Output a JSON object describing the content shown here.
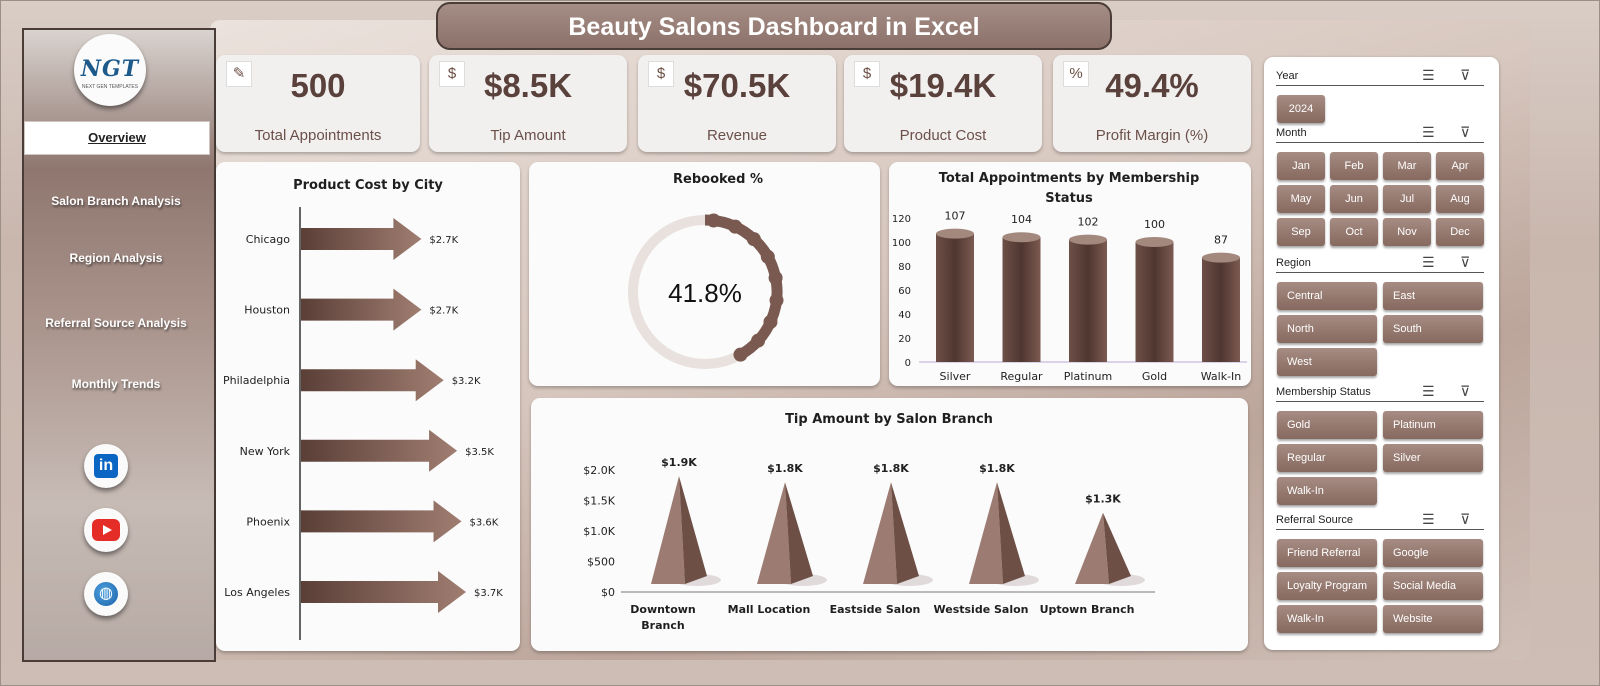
{
  "title": "Beauty Salons Dashboard in Excel",
  "logo": {
    "text": "NGT",
    "subtitle": "NEXT GEN TEMPLATES"
  },
  "nav": {
    "active": "Overview",
    "items": [
      "Salon Branch Analysis",
      "Region Analysis",
      "Referral Source Analysis",
      "Monthly Trends"
    ]
  },
  "social": [
    "linkedin-icon",
    "youtube-icon",
    "globe-icon"
  ],
  "kpis": [
    {
      "value": "500",
      "label": "Total Appointments",
      "icon": "clipboard-icon"
    },
    {
      "value": "$8.5K",
      "label": "Tip Amount",
      "icon": "money-tip-icon"
    },
    {
      "value": "$70.5K",
      "label": "Revenue",
      "icon": "money-bag-icon"
    },
    {
      "value": "$19.4K",
      "label": "Product Cost",
      "icon": "cost-bag-icon"
    },
    {
      "value": "49.4%",
      "label": "Profit Margin (%)",
      "icon": "profit-coins-icon"
    }
  ],
  "colors": {
    "accent": "#7a5a50",
    "dark": "#4a3d38",
    "ring": "#e8e1de"
  },
  "charts": {
    "product_cost": {
      "type": "bar",
      "title": "Product Cost by City",
      "categories": [
        "Chicago",
        "Houston",
        "Philadelphia",
        "New York",
        "Phoenix",
        "Los Angeles"
      ],
      "values": [
        2.7,
        2.7,
        3.2,
        3.5,
        3.6,
        3.7
      ],
      "labels": [
        "$2.7K",
        "$2.7K",
        "$3.2K",
        "$3.5K",
        "$3.6K",
        "$3.7K"
      ]
    },
    "rebooked": {
      "type": "pie",
      "title": "Rebooked %",
      "value": 41.8,
      "label": "41.8%"
    },
    "membership": {
      "type": "bar",
      "title_line1": "Total Appointments by Membership",
      "title_line2": "Status",
      "categories": [
        "Silver",
        "Regular",
        "Platinum",
        "Gold",
        "Walk-In"
      ],
      "values": [
        107,
        104,
        102,
        100,
        87
      ],
      "labels": [
        "107",
        "104",
        "102",
        "100",
        "87"
      ],
      "ylim": [
        0,
        120
      ],
      "ticks": [
        "0",
        "20",
        "40",
        "60",
        "80",
        "100",
        "120"
      ]
    },
    "tip_branch": {
      "type": "bar",
      "title": "Tip Amount by Salon Branch",
      "categories": [
        [
          "Downtown",
          "Branch"
        ],
        [
          "Mall Location"
        ],
        [
          "Eastside Salon"
        ],
        [
          "Westside Salon"
        ],
        [
          "Uptown Branch"
        ]
      ],
      "values": [
        1.9,
        1.8,
        1.8,
        1.8,
        1.3
      ],
      "labels": [
        "$1.9K",
        "$1.8K",
        "$1.8K",
        "$1.8K",
        "$1.3K"
      ],
      "ylim": [
        0,
        2.0
      ],
      "ticks": [
        "$0",
        "$500",
        "$1.0K",
        "$1.5K",
        "$2.0K"
      ]
    }
  },
  "slicers": {
    "year": {
      "label": "Year",
      "options": [
        "2024"
      ]
    },
    "month": {
      "label": "Month",
      "options": [
        "Jan",
        "Feb",
        "Mar",
        "Apr",
        "May",
        "Jun",
        "Jul",
        "Aug",
        "Sep",
        "Oct",
        "Nov",
        "Dec"
      ]
    },
    "region": {
      "label": "Region",
      "options": [
        "Central",
        "East",
        "North",
        "South",
        "West"
      ]
    },
    "membership": {
      "label": "Membership Status",
      "options": [
        "Gold",
        "Platinum",
        "Regular",
        "Silver",
        "Walk-In"
      ]
    },
    "referral": {
      "label": "Referral Source",
      "options": [
        "Friend Referral",
        "Google",
        "Loyalty Program",
        "Social Media",
        "Walk-In",
        "Website"
      ]
    }
  }
}
